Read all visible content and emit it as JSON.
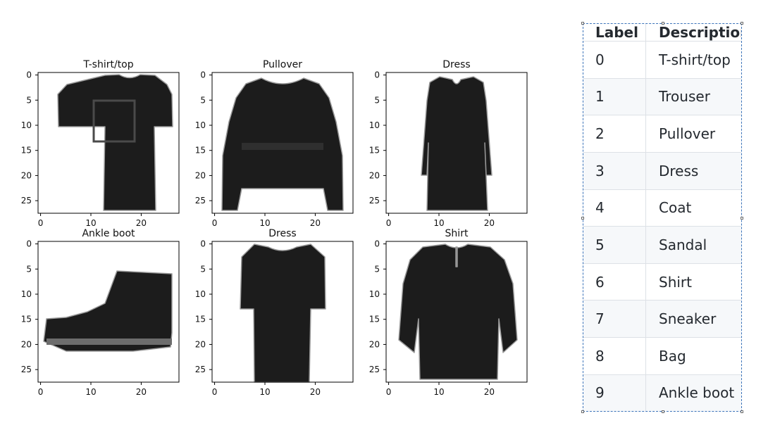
{
  "chart_data": [
    {
      "type": "heatmap",
      "title": "T-shirt/top",
      "item": "tshirt",
      "xticks": [
        "0",
        "10",
        "20"
      ],
      "yticks": [
        "0",
        "5",
        "10",
        "15",
        "20",
        "25"
      ],
      "xlim": [
        0,
        27
      ],
      "ylim": [
        27,
        0
      ]
    },
    {
      "type": "heatmap",
      "title": "Pullover",
      "item": "pullover",
      "xticks": [
        "0",
        "10",
        "20"
      ],
      "yticks": [
        "0",
        "5",
        "10",
        "15",
        "20",
        "25"
      ],
      "xlim": [
        0,
        27
      ],
      "ylim": [
        27,
        0
      ]
    },
    {
      "type": "heatmap",
      "title": "Dress",
      "item": "dress",
      "xticks": [
        "0",
        "10",
        "20"
      ],
      "yticks": [
        "0",
        "5",
        "10",
        "15",
        "20",
        "25"
      ],
      "xlim": [
        0,
        27
      ],
      "ylim": [
        27,
        0
      ]
    },
    {
      "type": "heatmap",
      "title": "Ankle boot",
      "item": "boot",
      "xticks": [
        "0",
        "10",
        "20"
      ],
      "yticks": [
        "0",
        "5",
        "10",
        "15",
        "20",
        "25"
      ],
      "xlim": [
        0,
        27
      ],
      "ylim": [
        27,
        0
      ]
    },
    {
      "type": "heatmap",
      "title": "Dress",
      "item": "dress2",
      "xticks": [
        "0",
        "10",
        "20"
      ],
      "yticks": [
        "0",
        "5",
        "10",
        "15",
        "20",
        "25"
      ],
      "xlim": [
        0,
        27
      ],
      "ylim": [
        27,
        0
      ]
    },
    {
      "type": "heatmap",
      "title": "Shirt",
      "item": "shirt",
      "xticks": [
        "0",
        "10",
        "20"
      ],
      "yticks": [
        "0",
        "5",
        "10",
        "15",
        "20",
        "25"
      ],
      "xlim": [
        0,
        27
      ],
      "ylim": [
        27,
        0
      ]
    }
  ],
  "table": {
    "headers": [
      "Label",
      "Description"
    ],
    "rows": [
      [
        "0",
        "T-shirt/top"
      ],
      [
        "1",
        "Trouser"
      ],
      [
        "2",
        "Pullover"
      ],
      [
        "3",
        "Dress"
      ],
      [
        "4",
        "Coat"
      ],
      [
        "5",
        "Sandal"
      ],
      [
        "6",
        "Shirt"
      ],
      [
        "7",
        "Sneaker"
      ],
      [
        "8",
        "Bag"
      ],
      [
        "9",
        "Ankle boot"
      ]
    ]
  },
  "colors": {
    "ink": "#1c1c1c",
    "frame": "#000000",
    "selection": "#3b73b9"
  }
}
